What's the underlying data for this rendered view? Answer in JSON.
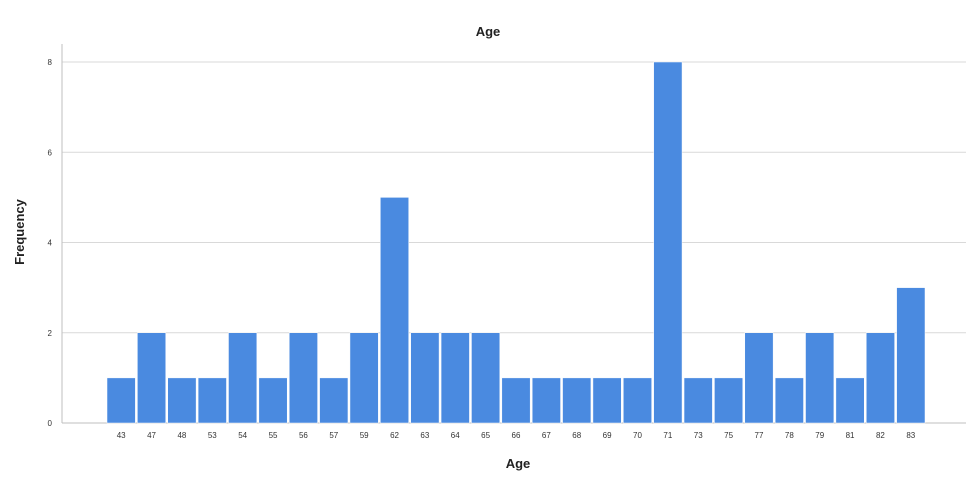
{
  "chart_data": {
    "type": "bar",
    "title": "Age",
    "xlabel": "Age",
    "ylabel": "Frequency",
    "categories": [
      "43",
      "47",
      "48",
      "53",
      "54",
      "55",
      "56",
      "57",
      "59",
      "62",
      "63",
      "64",
      "65",
      "66",
      "67",
      "68",
      "69",
      "70",
      "71",
      "73",
      "75",
      "77",
      "78",
      "79",
      "81",
      "82",
      "83"
    ],
    "values": [
      1,
      2,
      1,
      1,
      2,
      1,
      2,
      1,
      2,
      5,
      2,
      2,
      2,
      1,
      1,
      1,
      1,
      1,
      8,
      1,
      1,
      2,
      1,
      2,
      1,
      2,
      3
    ],
    "ylim": [
      0,
      8
    ],
    "yticks": [
      0,
      2,
      4,
      6,
      8
    ],
    "grid": true,
    "bar_color": "#4a8ae0",
    "bar_edge_color": "#ffffff"
  }
}
